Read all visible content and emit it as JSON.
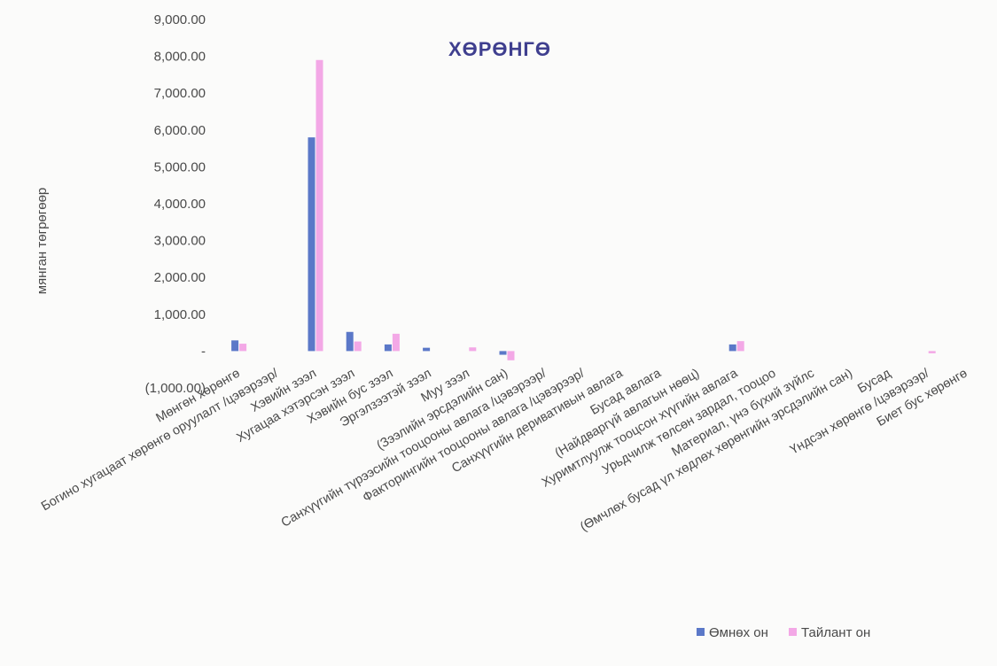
{
  "colors": {
    "prior_year": "#5b78c8",
    "report_year": "#f3a8e6",
    "text": "#4a4a4a",
    "title": "#3f3f8f"
  },
  "chart_data": {
    "type": "bar",
    "title": "ХӨРӨНГӨ",
    "xlabel": "",
    "ylabel": "мянган төгрөгөөр",
    "ylim": [
      -1000,
      9000
    ],
    "yticks": [
      {
        "value": 9000,
        "label": "9,000.00"
      },
      {
        "value": 8000,
        "label": "8,000.00"
      },
      {
        "value": 7000,
        "label": "7,000.00"
      },
      {
        "value": 6000,
        "label": "6,000.00"
      },
      {
        "value": 5000,
        "label": "5,000.00"
      },
      {
        "value": 4000,
        "label": "4,000.00"
      },
      {
        "value": 3000,
        "label": "3,000.00"
      },
      {
        "value": 2000,
        "label": "2,000.00"
      },
      {
        "value": 1000,
        "label": "1,000.00"
      },
      {
        "value": 0,
        "label": "-"
      },
      {
        "value": -1000,
        "label": "(1,000.00)"
      }
    ],
    "grid": false,
    "legend_position": "bottom-right",
    "categories": [
      "Мөнгөн хөрөнгө",
      "Богино хугацаат хөрөнгө оруулалт /цэвэрээр/",
      "Хэвийн зээл",
      "Хугацаа хэтэрсэн зээл",
      "Хэвийн бус зээл",
      "Эргэлзээтэй зээл",
      "Муу зээл",
      "(Зээлийн эрсдэлийн сан)",
      "Санхүүгийн түрээсийн тооцооны авлага /цэвэрээр/",
      "Факторингийн тооцооны авлага /цэвэрээр/",
      "Санхүүгийн деривативын авлага",
      "Бусад авлага",
      "(Найдваргүй авлагын нөөц)",
      "Хуримтлуулж тооцсон хүүгийн авлага",
      "Урьдчилж төлсөн зардал, тооцоо",
      "Материал, үнэ бүхий зүйлс",
      "(Өмчлөх бусад үл хөдлөх хөрөнгийн эрсдэлийн сан)",
      "Бусад",
      "Үндсэн хөрөнгө /цэвэрээр/",
      "Биет бус хөрөнгө"
    ],
    "series": [
      {
        "name": "Өмнөх он",
        "values": [
          290,
          0,
          5800,
          520,
          180,
          90,
          0,
          -100,
          0,
          0,
          0,
          0,
          0,
          180,
          0,
          0,
          0,
          0,
          0,
          0
        ]
      },
      {
        "name": "Тайлант он",
        "values": [
          200,
          0,
          7900,
          260,
          470,
          0,
          100,
          -250,
          0,
          0,
          0,
          0,
          0,
          270,
          0,
          0,
          0,
          0,
          -60,
          0
        ]
      }
    ]
  }
}
